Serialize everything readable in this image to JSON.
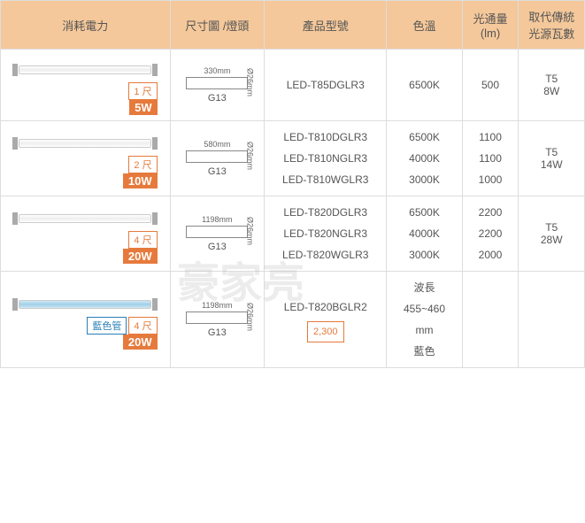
{
  "headers": {
    "power": "消耗電力",
    "dimension": "尺寸圖\n/燈頭",
    "model": "產品型號",
    "color_temp": "色溫",
    "lumen": "光通量\n(lm)",
    "replace": "取代傳統\n光源瓦數"
  },
  "watermark": "豪家亮",
  "rows": [
    {
      "length_badge": "1 尺",
      "watt_badge": "5W",
      "dim_length": "330mm",
      "dim_diameter": "Ø26mm",
      "base": "G13",
      "models": [
        "LED-T85DGLR3"
      ],
      "color_temps": [
        "6500K"
      ],
      "lumens": [
        "500"
      ],
      "replace": "T5\n8W",
      "tube_class": "tube"
    },
    {
      "length_badge": "2 尺",
      "watt_badge": "10W",
      "dim_length": "580mm",
      "dim_diameter": "Ø26mm",
      "base": "G13",
      "models": [
        "LED-T810DGLR3",
        "LED-T810NGLR3",
        "LED-T810WGLR3"
      ],
      "color_temps": [
        "6500K",
        "4000K",
        "3000K"
      ],
      "lumens": [
        "1100",
        "1100",
        "1000"
      ],
      "replace": "T5\n14W",
      "tube_class": "tube"
    },
    {
      "length_badge": "4 尺",
      "watt_badge": "20W",
      "dim_length": "1198mm",
      "dim_diameter": "Ø26mm",
      "base": "G13",
      "models": [
        "LED-T820DGLR3",
        "LED-T820NGLR3",
        "LED-T820WGLR3"
      ],
      "color_temps": [
        "6500K",
        "4000K",
        "3000K"
      ],
      "lumens": [
        "2200",
        "2200",
        "2000"
      ],
      "replace": "T5\n28W",
      "tube_class": "tube"
    },
    {
      "length_badge": "4 尺",
      "watt_badge": "20W",
      "blue_label": "藍色管",
      "dim_length": "1198mm",
      "dim_diameter": "Ø26mm",
      "base": "G13",
      "models": [
        "LED-T820BGLR2"
      ],
      "price": "2,300",
      "color_temps": [
        "波長\n455~460\nmm",
        "藍色"
      ],
      "lumens": [
        ""
      ],
      "replace": "",
      "tube_class": "tube blue"
    }
  ]
}
